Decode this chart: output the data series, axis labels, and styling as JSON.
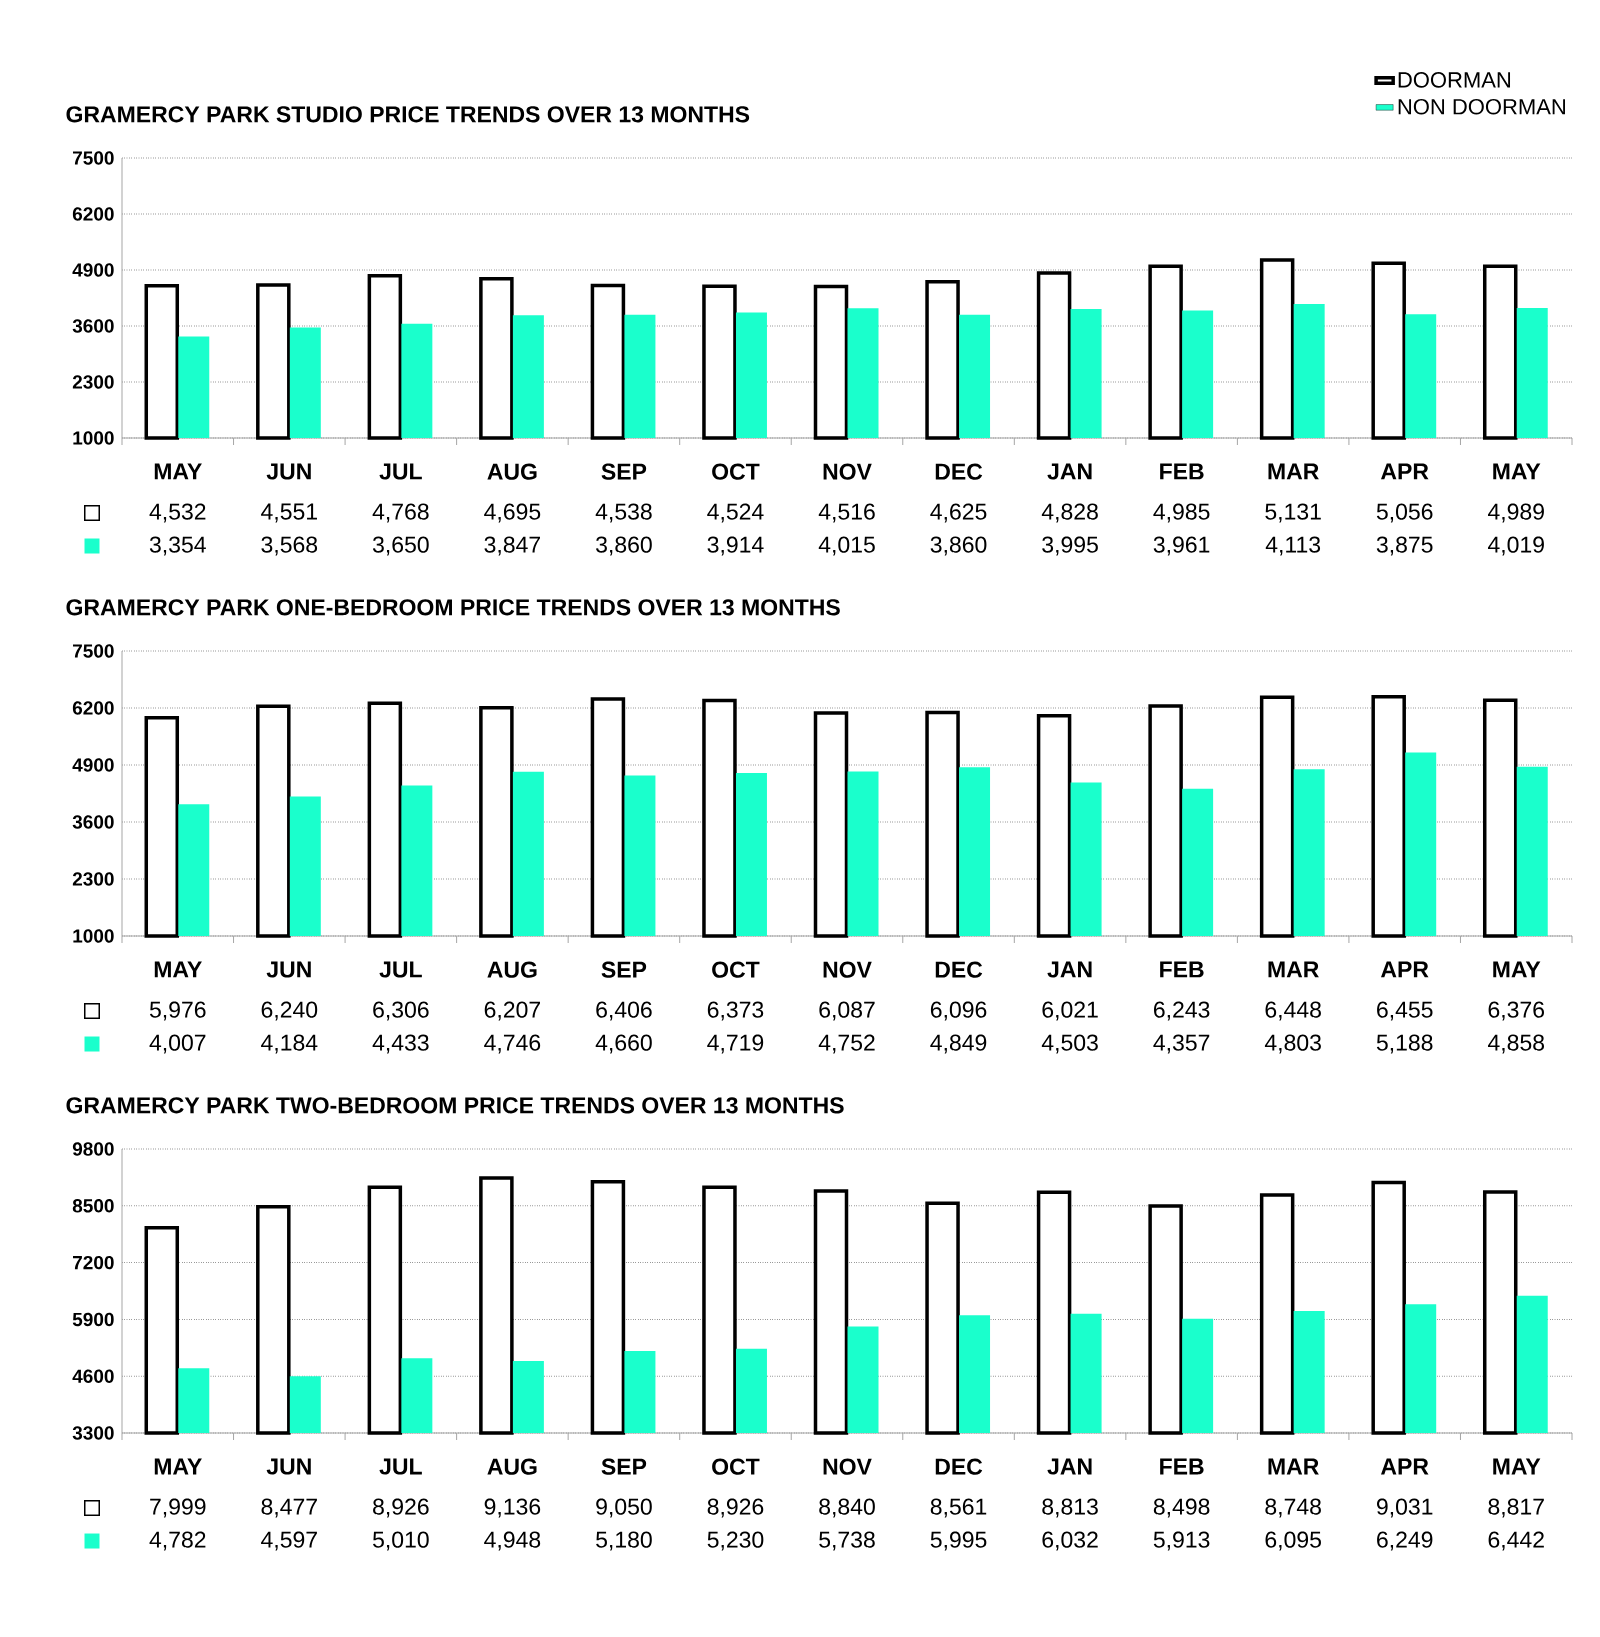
{
  "chart_data": [
    {
      "type": "bar",
      "title": "GRAMERCY PARK STUDIO PRICE TRENDS OVER 13 MONTHS",
      "categories": [
        "MAY",
        "JUN",
        "JUL",
        "AUG",
        "SEP",
        "OCT",
        "NOV",
        "DEC",
        "JAN",
        "FEB",
        "MAR",
        "APR",
        "MAY"
      ],
      "ylim": [
        1000,
        7500
      ],
      "yticks": [
        1000,
        2300,
        3600,
        4900,
        6200,
        7500
      ],
      "grid": "y",
      "legend": "top right",
      "series": [
        {
          "name": "DOORMAN",
          "color": "#ffffff",
          "values": [
            4532,
            4551,
            4768,
            4695,
            4538,
            4524,
            4516,
            4625,
            4828,
            4985,
            5131,
            5056,
            4989
          ],
          "value_labels": [
            "4,532",
            "4,551",
            "4,768",
            "4,695",
            "4,538",
            "4,524",
            "4,516",
            "4,625",
            "4,828",
            "4,985",
            "5,131",
            "5,056",
            "4,989"
          ]
        },
        {
          "name": "NON DOORMAN",
          "color": "#1affcc",
          "values": [
            3354,
            3568,
            3650,
            3847,
            3860,
            3914,
            4015,
            3860,
            3995,
            3961,
            4113,
            3875,
            4019
          ],
          "value_labels": [
            "3,354",
            "3,568",
            "3,650",
            "3,847",
            "3,860",
            "3,914",
            "4,015",
            "3,860",
            "3,995",
            "3,961",
            "4,113",
            "3,875",
            "4,019"
          ]
        }
      ]
    },
    {
      "type": "bar",
      "title": "GRAMERCY PARK ONE-BEDROOM PRICE TRENDS OVER 13 MONTHS",
      "categories": [
        "MAY",
        "JUN",
        "JUL",
        "AUG",
        "SEP",
        "OCT",
        "NOV",
        "DEC",
        "JAN",
        "FEB",
        "MAR",
        "APR",
        "MAY"
      ],
      "ylim": [
        1000,
        7500
      ],
      "yticks": [
        1000,
        2300,
        3600,
        4900,
        6200,
        7500
      ],
      "grid": "y",
      "series": [
        {
          "color": "#ffffff",
          "values": [
            5976,
            6240,
            6306,
            6207,
            6406,
            6373,
            6087,
            6096,
            6021,
            6243,
            6448,
            6455,
            6376
          ],
          "value_labels": [
            "5,976",
            "6,240",
            "6,306",
            "6,207",
            "6,406",
            "6,373",
            "6,087",
            "6,096",
            "6,021",
            "6,243",
            "6,448",
            "6,455",
            "6,376"
          ]
        },
        {
          "color": "#1affcc",
          "values": [
            4007,
            4184,
            4433,
            4746,
            4660,
            4719,
            4752,
            4849,
            4503,
            4357,
            4803,
            5188,
            4858
          ],
          "value_labels": [
            "4,007",
            "4,184",
            "4,433",
            "4,746",
            "4,660",
            "4,719",
            "4,752",
            "4,849",
            "4,503",
            "4,357",
            "4,803",
            "5,188",
            "4,858"
          ]
        }
      ]
    },
    {
      "type": "bar",
      "title": "GRAMERCY PARK TWO-BEDROOM PRICE TRENDS OVER 13 MONTHS",
      "categories": [
        "MAY",
        "JUN",
        "JUL",
        "AUG",
        "SEP",
        "OCT",
        "NOV",
        "DEC",
        "JAN",
        "FEB",
        "MAR",
        "APR",
        "MAY"
      ],
      "ylim": [
        3300,
        9800
      ],
      "yticks": [
        3300,
        4600,
        5900,
        7200,
        8500,
        9800
      ],
      "grid": "y",
      "series": [
        {
          "color": "#ffffff",
          "values": [
            7999,
            8477,
            8926,
            9136,
            9050,
            8926,
            8840,
            8561,
            8813,
            8498,
            8748,
            9031,
            8817
          ],
          "value_labels": [
            "7,999",
            "8,477",
            "8,926",
            "9,136",
            "9,050",
            "8,926",
            "8,840",
            "8,561",
            "8,813",
            "8,498",
            "8,748",
            "9,031",
            "8,817"
          ]
        },
        {
          "color": "#1affcc",
          "values": [
            4782,
            4597,
            5010,
            4948,
            5180,
            5230,
            5738,
            5995,
            6032,
            5913,
            6095,
            6249,
            6442
          ],
          "value_labels": [
            "4,782",
            "4,597",
            "5,010",
            "4,948",
            "5,180",
            "5,230",
            "5,738",
            "5,995",
            "6,032",
            "5,913",
            "6,095",
            "6,249",
            "6,442"
          ]
        }
      ]
    }
  ]
}
